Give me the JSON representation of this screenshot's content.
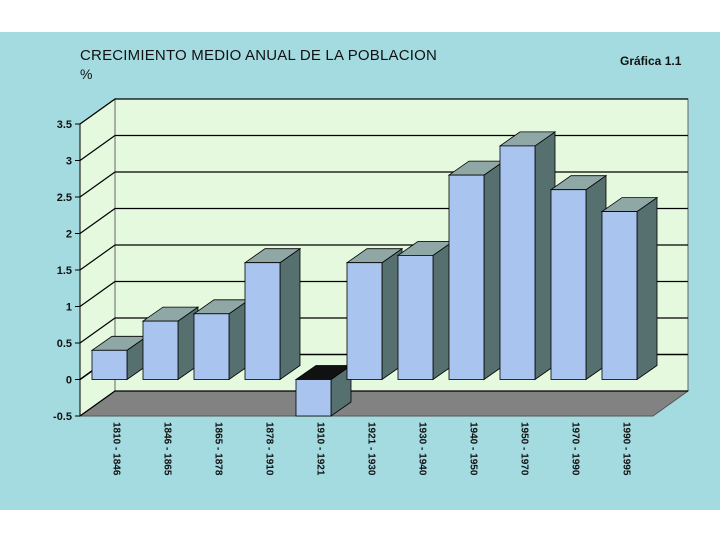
{
  "chart_data": {
    "type": "bar",
    "title": "CRECIMIENTO MEDIO ANUAL DE LA POBLACION",
    "ylabel": "%",
    "figure_label": "Gráfica 1.1",
    "categories": [
      "1810 - 1846",
      "1846 - 1865",
      "1865 - 1878",
      "1878 - 1910",
      "1910 - 1921",
      "1921 - 1930",
      "1930 - 1940",
      "1940 - 1950",
      "1950 - 1970",
      "1970 - 1990",
      "1990 - 1995"
    ],
    "values": [
      0.4,
      0.8,
      0.9,
      1.6,
      -0.5,
      1.6,
      1.7,
      2.8,
      3.2,
      2.6,
      2.3
    ],
    "ylim": [
      -0.5,
      3.5
    ],
    "yticks": [
      "-0.5",
      "0",
      "0.5",
      "1",
      "1.5",
      "2",
      "2.5",
      "3",
      "3.5"
    ],
    "grid": true,
    "style": "3d-column",
    "colors": {
      "bar_front": "#a9c5ef",
      "bar_side": "#56706f",
      "bar_top": "#8fa8a6",
      "wall": "#e4f9dd",
      "floor": "#828282",
      "background": "#a4dbe1"
    }
  }
}
